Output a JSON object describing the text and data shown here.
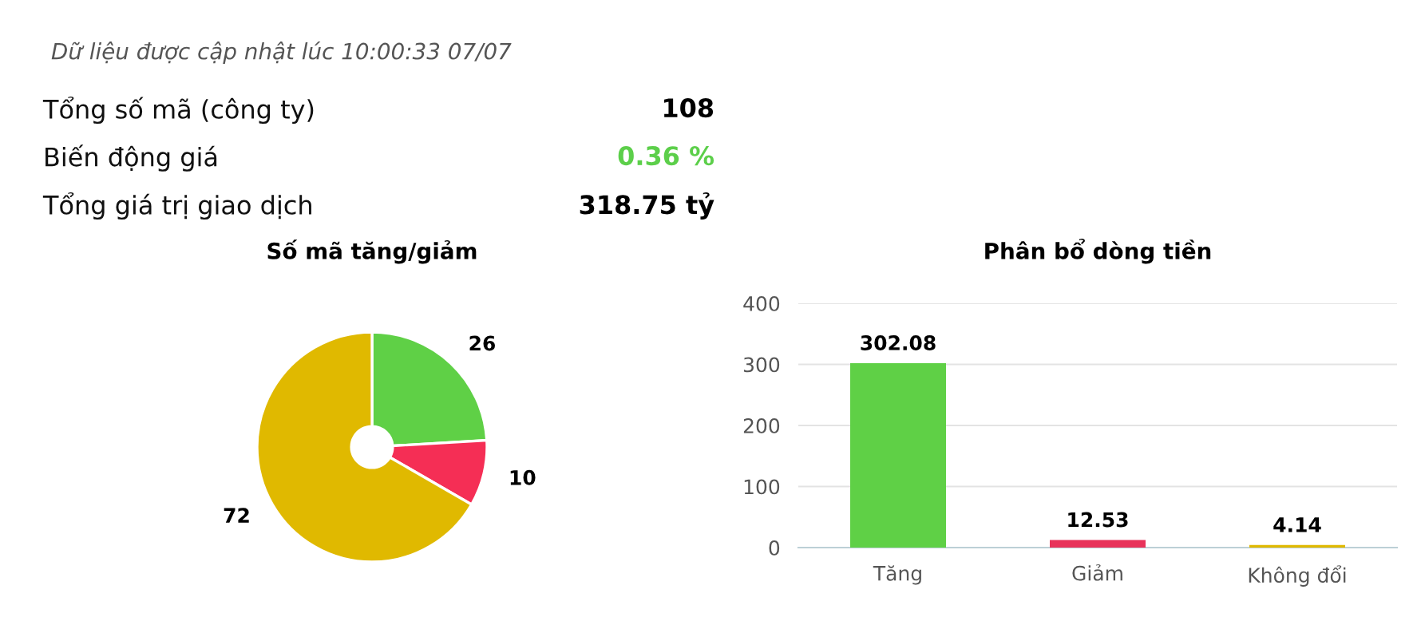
{
  "chart_data": [
    {
      "type": "other",
      "annotations": [
        "Dữ liệu được cập nhật lúc 10:00:33 07/07",
        "Tổng số mã (công ty)",
        "108",
        "Biến động giá",
        "0.36 %",
        "Tổng giá trị giao dịch",
        "318.75 tỷ"
      ],
      "colors": [
        "#555555",
        "#111111",
        "#000000",
        "#111111",
        "#5ccf4a",
        "#111111",
        "#000000"
      ]
    },
    {
      "type": "donut",
      "title": "Số mã tăng/giảm",
      "categories": [
        null,
        null,
        null
      ],
      "values": [
        26,
        10,
        72
      ],
      "colors": [
        "#5fd046",
        "#f52e55",
        "#e0b900"
      ],
      "data_labels": true
    },
    {
      "type": "bar",
      "title": "Phân bổ dòng tiền",
      "categories": [
        "Tăng",
        "Giảm",
        "Không đổi"
      ],
      "values": [
        302.08,
        12.53,
        4.14
      ],
      "colors": [
        "#5fd046",
        "#e8325a",
        "#e0b900"
      ],
      "ylim": [
        0,
        400
      ],
      "yticks": [
        0,
        100,
        200,
        300,
        400
      ],
      "grid": "y",
      "data_labels": true
    }
  ]
}
